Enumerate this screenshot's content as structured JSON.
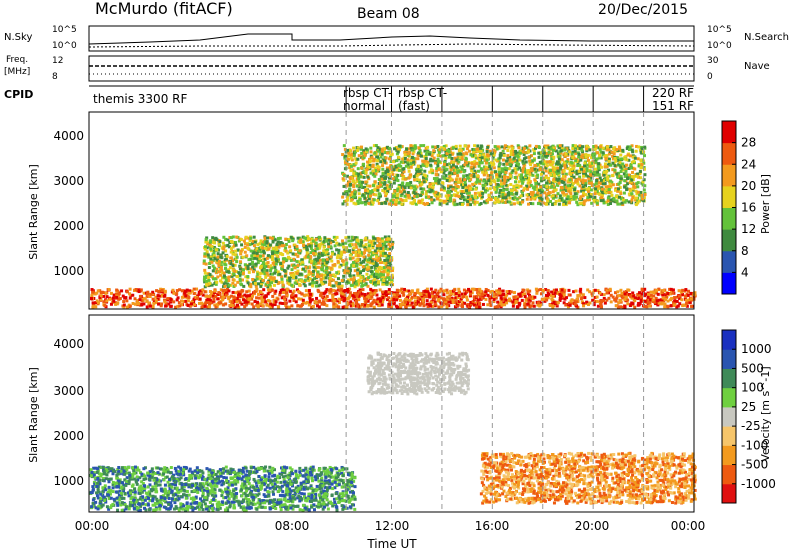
{
  "header": {
    "title": "McMurdo (fitACF)",
    "beam": "Beam 08",
    "date": "20/Dec/2015"
  },
  "summary_panels": {
    "nsky": {
      "label": "N.Sky",
      "ticks": [
        "10^5",
        "10^0"
      ],
      "right_label": "N.Search",
      "right_ticks": [
        "10^5",
        "10^0"
      ]
    },
    "freq": {
      "label_line1": "Freq.",
      "label_line2": "[MHz]",
      "ticks": [
        "12",
        "8"
      ],
      "right_label": "Nave",
      "right_ticks": [
        "30",
        "0"
      ]
    },
    "cpid": {
      "label": "CPID",
      "first": "themis 3300 RF",
      "entries": [
        "rbsp CT-",
        "normal",
        "rbsp CT-",
        "(fast)",
        "220 RF",
        "151 RF"
      ]
    }
  },
  "chart_data": [
    {
      "type": "heatmap",
      "name": "power",
      "ylabel": "Slant Range [km]",
      "yticks": [
        1000,
        2000,
        3000,
        4000
      ],
      "ylim": [
        180,
        4500
      ],
      "xlim": [
        0,
        24
      ],
      "colorbar": {
        "label": "Power [dB]",
        "ticks": [
          "28",
          "24",
          "20",
          "16",
          "12",
          "8",
          "4"
        ],
        "colors": [
          "#0000ff",
          "#2a55b0",
          "#3f8a3f",
          "#63c23a",
          "#e6d21e",
          "#f39a1e",
          "#ee5a10",
          "#e00000"
        ]
      },
      "features": [
        {
          "x0": 0,
          "x1": 24,
          "y0": 250,
          "y1": 650,
          "level": "high"
        },
        {
          "x0": 10.0,
          "x1": 22.0,
          "y0": 2500,
          "y1": 3800,
          "level": "medium"
        },
        {
          "x0": 4.5,
          "x1": 12.0,
          "y0": 700,
          "y1": 1800,
          "level": "medium"
        }
      ]
    },
    {
      "type": "heatmap",
      "name": "velocity",
      "ylabel": "Slant Range [km]",
      "yticks": [
        1000,
        2000,
        3000,
        4000
      ],
      "ylim": [
        180,
        4500
      ],
      "xlim": [
        0,
        24
      ],
      "xticks": [
        "00:00",
        "04:00",
        "08:00",
        "12:00",
        "16:00",
        "20:00",
        "00:00"
      ],
      "xlabel": "Time UT",
      "colorbar": {
        "label": "Velocity [m s^-1]",
        "ticks": [
          "1000",
          "500",
          "100",
          "25",
          "-25",
          "-100",
          "-500",
          "-1000"
        ],
        "colors": [
          "#e01010",
          "#ee5a10",
          "#f39a1e",
          "#f6c56a",
          "#c8c8c0",
          "#6fd040",
          "#3f8a58",
          "#2a55b0",
          "#1a30c0"
        ]
      },
      "features": [
        {
          "x0": 0,
          "x1": 10.5,
          "y0": 250,
          "y1": 1200,
          "level": "positive"
        },
        {
          "x0": 15.5,
          "x1": 24,
          "y0": 400,
          "y1": 1500,
          "level": "negative"
        },
        {
          "x0": 11.0,
          "x1": 15.0,
          "y0": 2800,
          "y1": 3700,
          "level": "near-zero"
        }
      ]
    }
  ]
}
